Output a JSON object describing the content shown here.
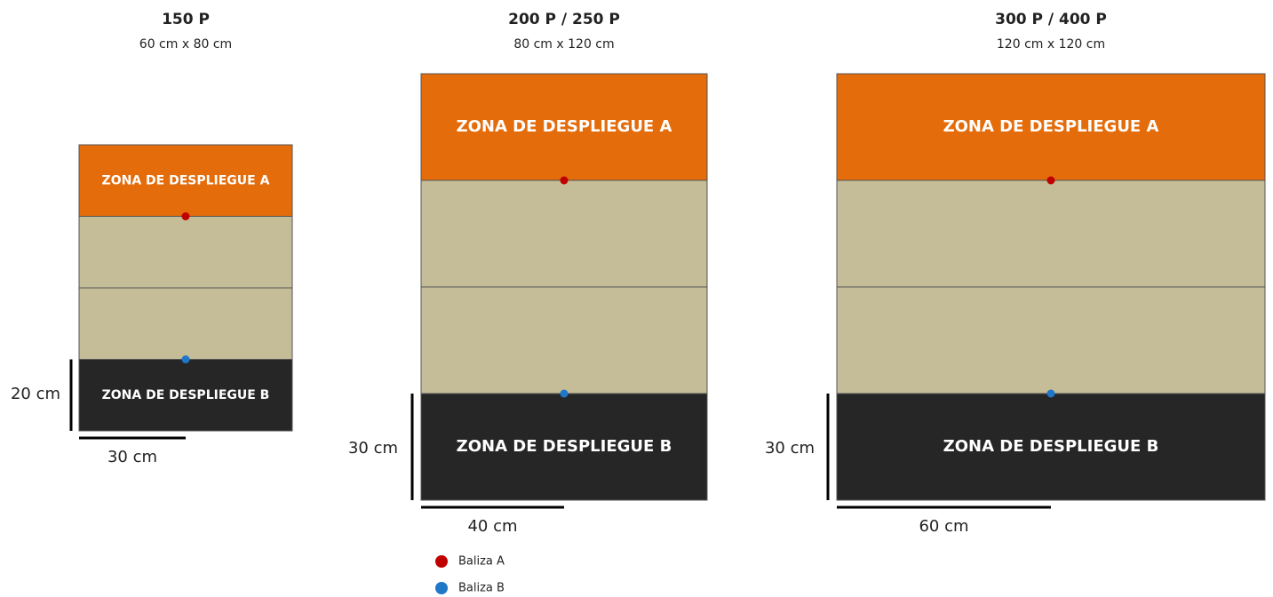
{
  "boards": [
    {
      "title": "150 P",
      "size": "60 cm x 80 cm",
      "zone_a": "ZONA DE DESPLIEGUE A",
      "zone_b": "ZONA DE DESPLIEGUE B",
      "height_label": "20 cm",
      "width_label": "30 cm"
    },
    {
      "title": "200 P / 250 P",
      "size": "80 cm x 120 cm",
      "zone_a": "ZONA DE DESPLIEGUE A",
      "zone_b": "ZONA DE DESPLIEGUE B",
      "height_label": "30 cm",
      "width_label": "40 cm"
    },
    {
      "title": "300 P / 400 P",
      "size": "120 cm x 120 cm",
      "zone_a": "ZONA DE DESPLIEGUE A",
      "zone_b": "ZONA DE DESPLIEGUE B",
      "height_label": "30 cm",
      "width_label": "60 cm"
    }
  ],
  "legend": [
    {
      "label": "Baliza A",
      "color": "#c00000"
    },
    {
      "label": "Baliza B",
      "color": "#1f77c8"
    }
  ]
}
